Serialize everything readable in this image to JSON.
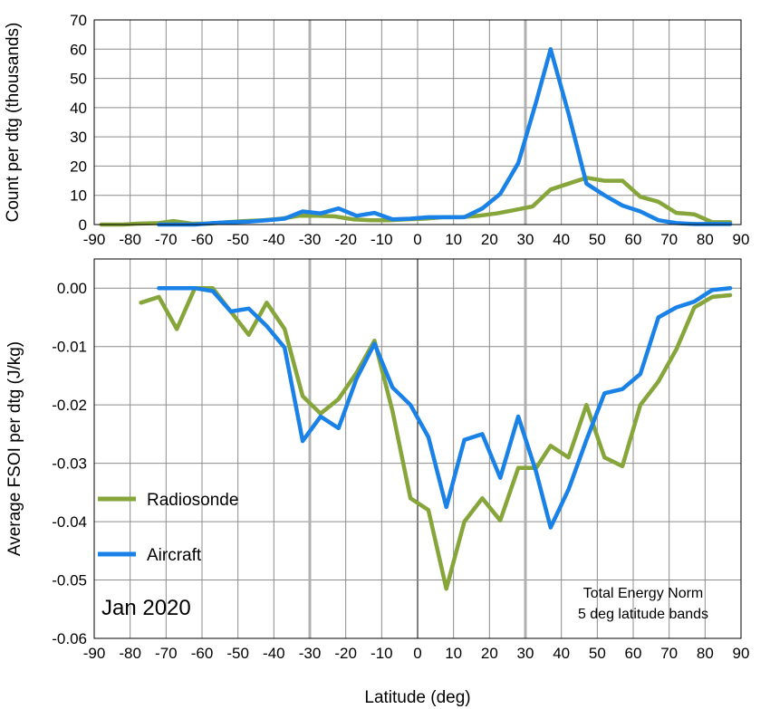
{
  "colors": {
    "radiosonde": "#86a53a",
    "aircraft": "#1a82e6",
    "grid": "#8c8c8c",
    "marker": "#b0b0b0"
  },
  "chart_data": [
    {
      "type": "line",
      "ylabel": "Count per dtg (thousands)",
      "xlim": [
        -90,
        90
      ],
      "ylim": [
        0,
        70
      ],
      "xticks": [
        "-90",
        "-80",
        "-70",
        "-60",
        "-50",
        "-40",
        "-30",
        "-20",
        "-10",
        "0",
        "10",
        "20",
        "30",
        "40",
        "50",
        "60",
        "70",
        "80",
        "90"
      ],
      "yticks": [
        "0",
        "10",
        "20",
        "30",
        "40",
        "50",
        "60",
        "70"
      ],
      "grid": true,
      "vertical_markers": [
        -30,
        30
      ],
      "series": [
        {
          "name": "Radiosonde",
          "x": [
            -88,
            -82,
            -78,
            -72,
            -68,
            -63,
            -58,
            -53,
            -48,
            -43,
            -38,
            -33,
            -28,
            -23,
            -18,
            -13,
            -8,
            -3,
            2,
            7,
            12,
            17,
            22,
            27,
            32,
            37,
            42,
            47,
            52,
            57,
            62,
            67,
            72,
            77,
            82,
            87
          ],
          "y": [
            0,
            0,
            0.3,
            0.5,
            1.2,
            0.3,
            0.3,
            0.8,
            1.2,
            1.5,
            2.0,
            3.0,
            3.0,
            2.8,
            1.8,
            1.5,
            1.5,
            1.8,
            2.0,
            2.5,
            2.5,
            3.0,
            3.8,
            5.0,
            6.2,
            12.0,
            14.0,
            16.0,
            15.0,
            15.0,
            9.5,
            7.8,
            4.0,
            3.5,
            0.8,
            0.8
          ]
        },
        {
          "name": "Aircraft",
          "x": [
            -72,
            -67,
            -62,
            -57,
            -52,
            -47,
            -42,
            -37,
            -32,
            -27,
            -22,
            -17,
            -12,
            -7,
            -2,
            3,
            8,
            13,
            18,
            23,
            28,
            33,
            37,
            42,
            47,
            52,
            57,
            62,
            67,
            72,
            77,
            82,
            87
          ],
          "y": [
            0,
            0,
            0,
            0.5,
            0.8,
            1.0,
            1.5,
            2.0,
            4.5,
            3.8,
            5.5,
            3.0,
            4.0,
            1.8,
            2.0,
            2.5,
            2.5,
            2.5,
            5.5,
            10.5,
            21.0,
            42.0,
            60.0,
            38.0,
            14.0,
            10.0,
            6.5,
            4.5,
            1.5,
            0.5,
            0.2,
            0.2,
            0.2
          ]
        }
      ]
    },
    {
      "type": "line",
      "title": "Jan 2020",
      "xlabel": "Latitude (deg)",
      "ylabel": "Average FSOI per dtg (J/kg)",
      "xlim": [
        -90,
        90
      ],
      "ylim": [
        -0.06,
        0.005
      ],
      "xticks": [
        "-90",
        "-80",
        "-70",
        "-60",
        "-50",
        "-40",
        "-30",
        "-20",
        "-10",
        "0",
        "10",
        "20",
        "30",
        "40",
        "50",
        "60",
        "70",
        "80",
        "90"
      ],
      "yticks": [
        "0.00",
        "-0.01",
        "-0.02",
        "-0.03",
        "-0.04",
        "-0.05",
        "-0.06"
      ],
      "grid": true,
      "vertical_markers": [
        -30,
        30
      ],
      "annotation": [
        "Total Energy Norm",
        "5 deg latitude bands"
      ],
      "legend_position": "left",
      "series": [
        {
          "name": "Radiosonde",
          "x": [
            -77,
            -72,
            -67,
            -62,
            -57,
            -52,
            -47,
            -42,
            -37,
            -32,
            -27,
            -22,
            -17,
            -12,
            -7,
            -2,
            3,
            8,
            13,
            18,
            23,
            28,
            33,
            37,
            42,
            47,
            52,
            57,
            62,
            67,
            72,
            77,
            82,
            87
          ],
          "y": [
            -0.0025,
            -0.0015,
            -0.007,
            0,
            0,
            -0.004,
            -0.008,
            -0.0025,
            -0.007,
            -0.0185,
            -0.0215,
            -0.019,
            -0.0145,
            -0.009,
            -0.021,
            -0.036,
            -0.038,
            -0.0515,
            -0.04,
            -0.036,
            -0.0398,
            -0.0308,
            -0.0308,
            -0.027,
            -0.029,
            -0.02,
            -0.029,
            -0.0305,
            -0.02,
            -0.016,
            -0.0105,
            -0.0033,
            -0.0015,
            -0.0012
          ]
        },
        {
          "name": "Aircraft",
          "x": [
            -72,
            -67,
            -62,
            -57,
            -52,
            -47,
            -42,
            -37,
            -32,
            -27,
            -22,
            -17,
            -12,
            -7,
            -2,
            3,
            8,
            13,
            18,
            23,
            28,
            33,
            37,
            42,
            47,
            52,
            57,
            62,
            67,
            72,
            77,
            82,
            87
          ],
          "y": [
            0,
            0,
            0,
            -0.0005,
            -0.004,
            -0.0035,
            -0.0065,
            -0.0102,
            -0.0262,
            -0.022,
            -0.024,
            -0.0155,
            -0.0095,
            -0.017,
            -0.02,
            -0.0255,
            -0.0375,
            -0.026,
            -0.025,
            -0.0325,
            -0.022,
            -0.0315,
            -0.041,
            -0.0345,
            -0.026,
            -0.018,
            -0.0173,
            -0.0147,
            -0.005,
            -0.0033,
            -0.0023,
            -0.0003,
            0
          ]
        }
      ]
    }
  ]
}
